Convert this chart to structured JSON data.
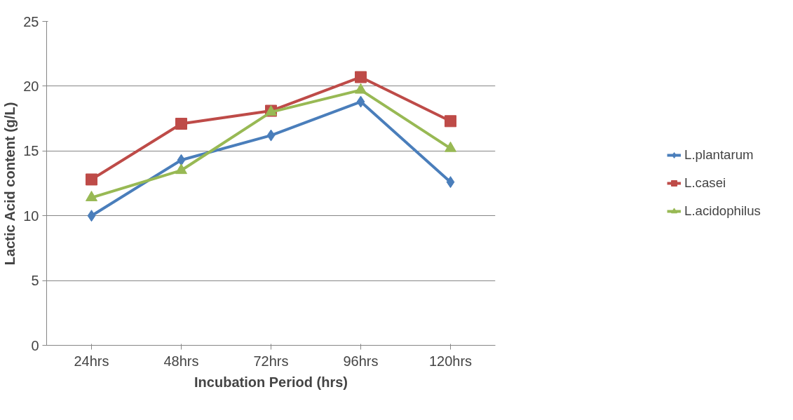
{
  "chart_data": {
    "type": "line",
    "xlabel": "Incubation Period (hrs)",
    "ylabel": "Lactic Acid content (g/L)",
    "categories": [
      "24hrs",
      "48hrs",
      "72hrs",
      "96hrs",
      "120hrs"
    ],
    "series": [
      {
        "name": "L.plantarum",
        "color": "#4a7ebb",
        "marker": "diamond",
        "values": [
          10.0,
          14.3,
          16.2,
          18.8,
          12.6
        ]
      },
      {
        "name": "L.casei",
        "color": "#be4b48",
        "marker": "square",
        "values": [
          12.8,
          17.1,
          18.1,
          20.7,
          17.3
        ]
      },
      {
        "name": "L.acidophilus",
        "color": "#98b954",
        "marker": "triangle",
        "values": [
          11.4,
          13.5,
          18.0,
          19.7,
          15.2
        ]
      }
    ],
    "ylim": [
      0,
      25
    ],
    "yticks": [
      0,
      5,
      10,
      15,
      20,
      25
    ],
    "grid": "y",
    "legend": "right",
    "line_style": "solid"
  }
}
